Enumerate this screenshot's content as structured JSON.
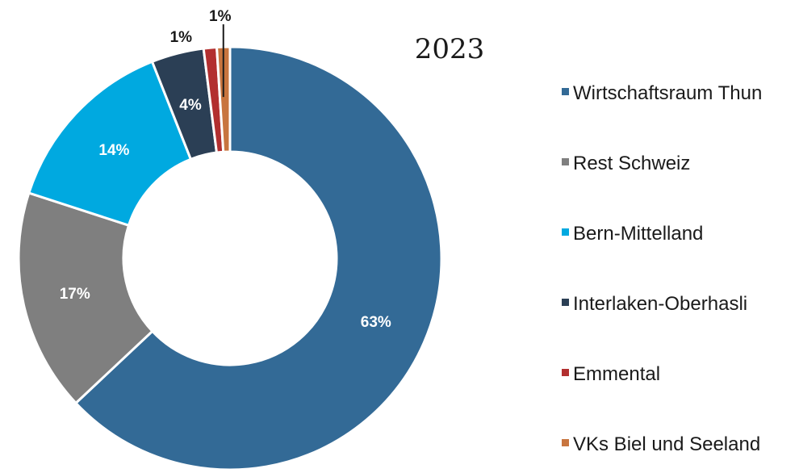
{
  "chart_data": {
    "type": "pie",
    "variant": "donut",
    "title": "2023",
    "categories": [
      "Wirtschaftsraum Thun",
      "Rest Schweiz",
      "Bern-Mittelland",
      "Interlaken-Oberhasli",
      "Emmental",
      "VKs Biel und Seeland"
    ],
    "values": [
      63,
      17,
      14,
      4,
      1,
      1
    ],
    "labels": [
      "63%",
      "17%",
      "14%",
      "4%",
      "1%",
      "1%"
    ],
    "colors": [
      "#336a96",
      "#7f7f7f",
      "#00a9e0",
      "#2b3f55",
      "#b22f2f",
      "#c8753f"
    ],
    "legend_position": "right"
  }
}
